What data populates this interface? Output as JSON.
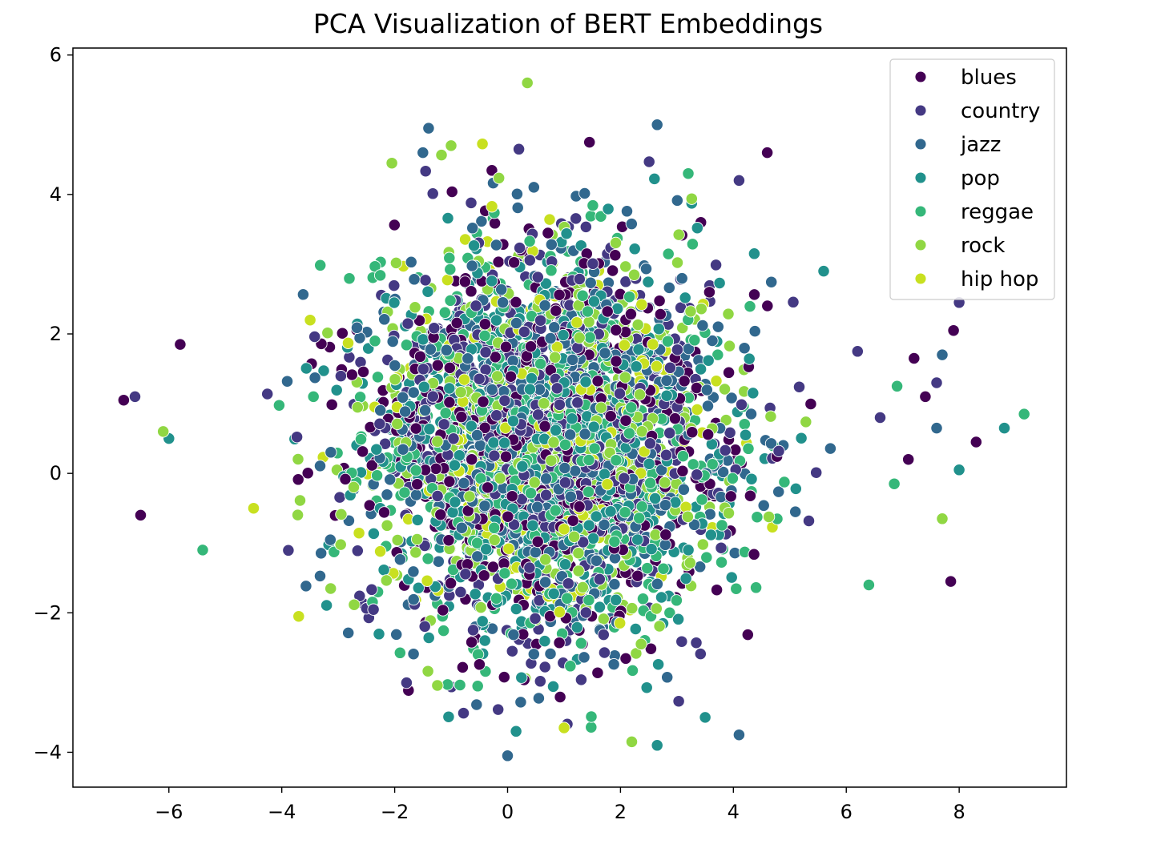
{
  "chart_data": {
    "type": "scatter",
    "title": "PCA Visualization of BERT Embeddings",
    "xlabel": "",
    "ylabel": "",
    "xlim": [
      -7.7,
      9.9
    ],
    "ylim": [
      -4.5,
      6.1
    ],
    "x_ticks": [
      -6,
      -4,
      -2,
      0,
      2,
      4,
      6,
      8
    ],
    "y_ticks": [
      -4,
      -2,
      0,
      2,
      4,
      6
    ],
    "x_tick_labels": [
      "−6",
      "−4",
      "−2",
      "0",
      "2",
      "4",
      "6",
      "8"
    ],
    "y_tick_labels": [
      "−4",
      "−2",
      "0",
      "2",
      "4",
      "6"
    ],
    "grid": false,
    "legend_position": "top-right",
    "cluster_center": [
      0.7,
      0.5
    ],
    "cluster_spread": [
      2.1,
      1.85
    ],
    "series": [
      {
        "name": "blues",
        "color": "#440154",
        "outliers": [
          [
            -6.8,
            1.05
          ],
          [
            -6.5,
            -0.6
          ],
          [
            -5.8,
            1.85
          ],
          [
            7.9,
            2.05
          ],
          [
            7.85,
            -1.55
          ],
          [
            8.3,
            0.45
          ],
          [
            7.2,
            1.65
          ],
          [
            7.1,
            0.2
          ],
          [
            7.4,
            1.1
          ],
          [
            1.45,
            4.75
          ],
          [
            4.6,
            4.6
          ]
        ]
      },
      {
        "name": "country",
        "color": "#443983",
        "outliers": [
          [
            -6.6,
            1.1
          ],
          [
            8.0,
            2.45
          ],
          [
            7.6,
            1.3
          ],
          [
            6.6,
            0.8
          ],
          [
            6.2,
            1.75
          ],
          [
            4.1,
            4.2
          ],
          [
            0.2,
            4.65
          ]
        ]
      },
      {
        "name": "jazz",
        "color": "#31688e",
        "outliers": [
          [
            -1.4,
            4.95
          ],
          [
            2.65,
            5.0
          ],
          [
            7.7,
            1.7
          ],
          [
            7.6,
            0.65
          ],
          [
            4.1,
            -3.75
          ],
          [
            0.0,
            -4.05
          ],
          [
            -1.5,
            4.6
          ]
        ]
      },
      {
        "name": "pop",
        "color": "#21918c",
        "outliers": [
          [
            8.0,
            0.05
          ],
          [
            8.8,
            0.65
          ],
          [
            2.65,
            -3.9
          ],
          [
            -6.0,
            0.5
          ],
          [
            5.6,
            2.9
          ],
          [
            3.5,
            -3.5
          ]
        ]
      },
      {
        "name": "reggae",
        "color": "#35b779",
        "outliers": [
          [
            9.15,
            0.85
          ],
          [
            6.85,
            -0.15
          ],
          [
            6.9,
            1.25
          ],
          [
            6.4,
            -1.6
          ],
          [
            -5.4,
            -1.1
          ],
          [
            3.2,
            4.3
          ]
        ]
      },
      {
        "name": "rock",
        "color": "#90d743",
        "outliers": [
          [
            0.35,
            5.6
          ],
          [
            7.7,
            -0.65
          ],
          [
            -6.1,
            0.6
          ],
          [
            -2.05,
            4.45
          ],
          [
            2.2,
            -3.85
          ],
          [
            -1.0,
            4.7
          ]
        ]
      },
      {
        "name": "hip hop",
        "color": "#c8e020",
        "outliers": [
          [
            -3.7,
            -2.05
          ],
          [
            1.0,
            -3.65
          ],
          [
            -4.5,
            -0.5
          ]
        ]
      }
    ],
    "series_weights": [
      0.16,
      0.17,
      0.17,
      0.17,
      0.15,
      0.12,
      0.06
    ],
    "points_per_series": 560
  },
  "legend": {
    "items": [
      "blues",
      "country",
      "jazz",
      "pop",
      "reggae",
      "rock",
      "hip hop"
    ]
  }
}
